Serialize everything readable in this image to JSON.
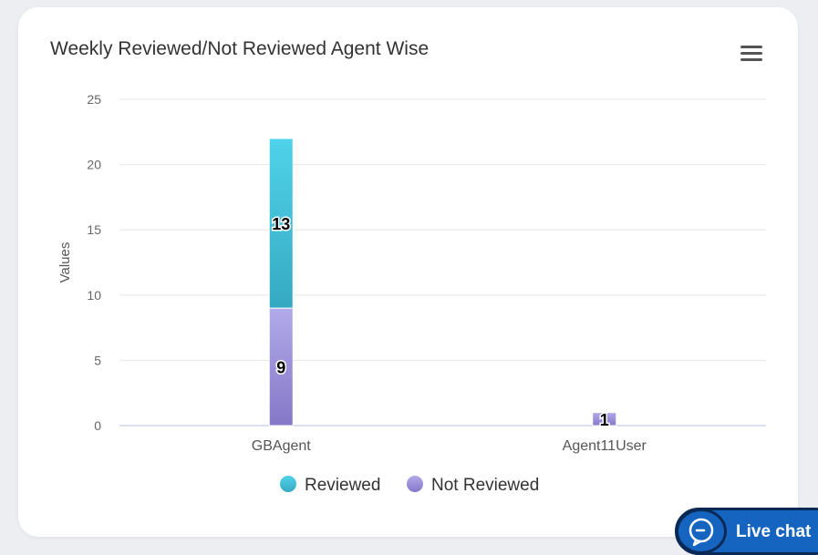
{
  "card": {
    "title": "Weekly Reviewed/Not Reviewed Agent Wise"
  },
  "menu": {
    "icon": "hamburger-menu-icon"
  },
  "chart_data": {
    "type": "bar",
    "stacked": true,
    "categories": [
      "GBAgent",
      "Agent11User"
    ],
    "series": [
      {
        "name": "Not Reviewed",
        "values": [
          9,
          1
        ],
        "color": "#9b8fd6"
      },
      {
        "name": "Reviewed",
        "values": [
          13,
          0
        ],
        "color": "#3fbfd6"
      }
    ],
    "data_labels": [
      {
        "category": "GBAgent",
        "series": "Reviewed",
        "value": "13"
      },
      {
        "category": "GBAgent",
        "series": "Not Reviewed",
        "value": "9"
      },
      {
        "category": "Agent11User",
        "series": "Not Reviewed",
        "value": "1"
      }
    ],
    "ylabel": "Values",
    "ylim": [
      0,
      25
    ],
    "yticks": [
      0,
      5,
      10,
      15,
      20,
      25
    ],
    "grid": true,
    "legend": "bottom-center"
  },
  "livechat": {
    "label": "Live chat",
    "icon": "chat-bubble-icon"
  }
}
